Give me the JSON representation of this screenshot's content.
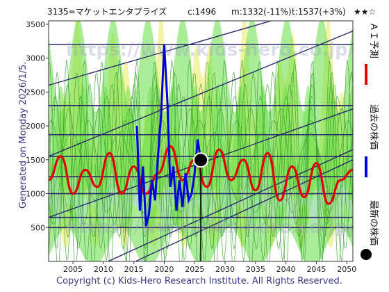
{
  "header": {
    "title": "3135=マケットエンタプライズ",
    "current": "c:1496",
    "m": "m:1332(-11%)",
    "t": "t:1537(+3%)",
    "stars": "★★☆"
  },
  "generated": "Generated on Monday 2026/1/5.",
  "copyright": "Copyright (c) Kids-Hero Research Institute. All Rights Reserved.",
  "watermark": "https://www.kids-hero.co.jp/",
  "legend": {
    "forecast": "ＡＩ予測",
    "past": "過去の株価",
    "latest": "最新の株価"
  },
  "colors": {
    "forecast": "#e00000",
    "past": "#0000dd",
    "latest": "#000000",
    "band_green": "#66dd44",
    "band_yellow": "#f2f29a",
    "band_blue": "#bcd6ea",
    "support_lines": "#2a2a6a"
  },
  "chart_data": {
    "type": "line",
    "xlim": [
      2001,
      2051
    ],
    "ylim": [
      0,
      3550
    ],
    "x_ticks": [
      2005,
      2010,
      2015,
      2020,
      2025,
      2030,
      2035,
      2040,
      2045,
      2050
    ],
    "y_ticks": [
      500,
      1000,
      1500,
      2000,
      2500,
      3000,
      3500
    ],
    "horizontal_levels": [
      500,
      650,
      1000,
      1250,
      1550,
      1870,
      2300,
      3200
    ],
    "trend_lines": [
      {
        "x": [
          2001,
          2051
        ],
        "y": [
          2600,
          3900
        ]
      },
      {
        "x": [
          2001,
          2051
        ],
        "y": [
          1550,
          3400
        ]
      },
      {
        "x": [
          2001,
          2051
        ],
        "y": [
          650,
          2250
        ]
      },
      {
        "x": [
          2001,
          2051
        ],
        "y": [
          -400,
          1650
        ]
      },
      {
        "x": [
          2001,
          2051
        ],
        "y": [
          -600,
          1500
        ]
      }
    ],
    "series": [
      {
        "name": "ＡＩ予測",
        "x": [
          2001,
          2003,
          2005,
          2007,
          2009,
          2011,
          2013,
          2015,
          2017,
          2019,
          2021,
          2023,
          2025,
          2027,
          2029,
          2031,
          2033,
          2035,
          2037,
          2039,
          2041,
          2043,
          2045,
          2047,
          2049,
          2051
        ],
        "y": [
          1200,
          1550,
          1000,
          1350,
          1100,
          1600,
          1000,
          1400,
          1000,
          1300,
          1700,
          1200,
          1500,
          1100,
          1650,
          1200,
          1500,
          1050,
          1600,
          900,
          1400,
          950,
          1450,
          850,
          1200,
          1350
        ]
      },
      {
        "name": "過去の株価",
        "x": [
          2015.5,
          2016.0,
          2016.5,
          2017.0,
          2017.5,
          2018.0,
          2018.5,
          2019.0,
          2019.5,
          2020.0,
          2020.5,
          2021.0,
          2021.5,
          2022.0,
          2022.5,
          2023.0,
          2023.5,
          2024.0,
          2024.5,
          2025.0,
          2025.5,
          2026.0
        ],
        "y": [
          2000,
          750,
          1400,
          520,
          700,
          1200,
          900,
          1600,
          2200,
          3200,
          2400,
          1100,
          1400,
          750,
          1200,
          800,
          1300,
          900,
          1000,
          1300,
          1800,
          1496
        ]
      }
    ],
    "latest_point": {
      "x": 2026.0,
      "y": 1496
    }
  }
}
